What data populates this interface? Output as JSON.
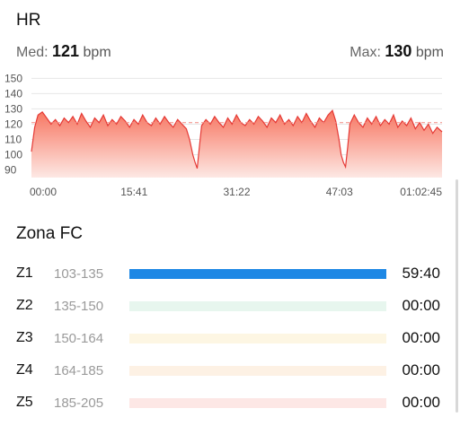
{
  "header": {
    "title": "HR"
  },
  "stats": {
    "avg": {
      "label": "Med:",
      "value": "121",
      "unit": "bpm"
    },
    "max": {
      "label": "Max:",
      "value": "130",
      "unit": "bpm"
    }
  },
  "chart_data": {
    "type": "area",
    "title": "",
    "xlabel": "",
    "ylabel": "",
    "ylim": [
      85,
      152
    ],
    "yticks": [
      150,
      140,
      130,
      120,
      110,
      100,
      90
    ],
    "xtick_labels": [
      "00:00",
      "15:41",
      "31:22",
      "47:03",
      "01:02:45"
    ],
    "xlim_seconds": [
      0,
      3765
    ],
    "reference_line": 121,
    "grid": true,
    "colors": {
      "line": "#e53935",
      "fill_top": "#f7745f",
      "fill_bottom": "#fde8e4",
      "grid": "#e6e6e6",
      "reference": "#f28b82"
    },
    "series": [
      {
        "points": [
          [
            0,
            102
          ],
          [
            30,
            118
          ],
          [
            60,
            126
          ],
          [
            100,
            128
          ],
          [
            140,
            124
          ],
          [
            180,
            120
          ],
          [
            220,
            123
          ],
          [
            260,
            119
          ],
          [
            300,
            124
          ],
          [
            340,
            121
          ],
          [
            380,
            125
          ],
          [
            420,
            120
          ],
          [
            460,
            127
          ],
          [
            500,
            122
          ],
          [
            540,
            118
          ],
          [
            580,
            124
          ],
          [
            620,
            121
          ],
          [
            660,
            126
          ],
          [
            700,
            119
          ],
          [
            740,
            123
          ],
          [
            780,
            120
          ],
          [
            820,
            125
          ],
          [
            860,
            122
          ],
          [
            900,
            118
          ],
          [
            940,
            123
          ],
          [
            980,
            120
          ],
          [
            1020,
            126
          ],
          [
            1060,
            121
          ],
          [
            1100,
            119
          ],
          [
            1140,
            124
          ],
          [
            1180,
            120
          ],
          [
            1220,
            125
          ],
          [
            1260,
            121
          ],
          [
            1300,
            118
          ],
          [
            1340,
            123
          ],
          [
            1380,
            120
          ],
          [
            1420,
            117
          ],
          [
            1450,
            110
          ],
          [
            1480,
            100
          ],
          [
            1500,
            95
          ],
          [
            1520,
            91
          ],
          [
            1540,
            105
          ],
          [
            1560,
            119
          ],
          [
            1600,
            123
          ],
          [
            1640,
            120
          ],
          [
            1680,
            125
          ],
          [
            1720,
            121
          ],
          [
            1760,
            118
          ],
          [
            1800,
            124
          ],
          [
            1840,
            120
          ],
          [
            1880,
            126
          ],
          [
            1920,
            121
          ],
          [
            1960,
            119
          ],
          [
            2000,
            123
          ],
          [
            2040,
            120
          ],
          [
            2080,
            125
          ],
          [
            2120,
            122
          ],
          [
            2160,
            118
          ],
          [
            2200,
            124
          ],
          [
            2240,
            121
          ],
          [
            2280,
            126
          ],
          [
            2320,
            120
          ],
          [
            2360,
            123
          ],
          [
            2400,
            119
          ],
          [
            2440,
            125
          ],
          [
            2480,
            121
          ],
          [
            2520,
            127
          ],
          [
            2560,
            122
          ],
          [
            2600,
            118
          ],
          [
            2640,
            124
          ],
          [
            2680,
            121
          ],
          [
            2720,
            126
          ],
          [
            2760,
            129
          ],
          [
            2790,
            122
          ],
          [
            2820,
            110
          ],
          [
            2840,
            100
          ],
          [
            2860,
            95
          ],
          [
            2880,
            92
          ],
          [
            2900,
            105
          ],
          [
            2920,
            120
          ],
          [
            2960,
            126
          ],
          [
            3000,
            121
          ],
          [
            3040,
            118
          ],
          [
            3080,
            124
          ],
          [
            3120,
            120
          ],
          [
            3160,
            125
          ],
          [
            3200,
            119
          ],
          [
            3240,
            123
          ],
          [
            3280,
            120
          ],
          [
            3320,
            126
          ],
          [
            3360,
            118
          ],
          [
            3400,
            122
          ],
          [
            3440,
            119
          ],
          [
            3480,
            124
          ],
          [
            3520,
            117
          ],
          [
            3560,
            121
          ],
          [
            3600,
            116
          ],
          [
            3640,
            120
          ],
          [
            3680,
            114
          ],
          [
            3720,
            118
          ],
          [
            3765,
            115
          ]
        ]
      }
    ]
  },
  "zones": {
    "title": "Zona FC",
    "items": [
      {
        "name": "Z1",
        "range": "103-135",
        "time": "59:40",
        "fraction": 1.0,
        "track_color": "#e8f1fb",
        "fill_color": "#1e88e5"
      },
      {
        "name": "Z2",
        "range": "135-150",
        "time": "00:00",
        "fraction": 0.0,
        "track_color": "#e7f6ee",
        "fill_color": "#43a047"
      },
      {
        "name": "Z3",
        "range": "150-164",
        "time": "00:00",
        "fraction": 0.0,
        "track_color": "#fdf6e3",
        "fill_color": "#fbc02d"
      },
      {
        "name": "Z4",
        "range": "164-185",
        "time": "00:00",
        "fraction": 0.0,
        "track_color": "#fdf1e4",
        "fill_color": "#fb8c00"
      },
      {
        "name": "Z5",
        "range": "185-205",
        "time": "00:00",
        "fraction": 0.0,
        "track_color": "#fde7e5",
        "fill_color": "#e53935"
      }
    ]
  }
}
